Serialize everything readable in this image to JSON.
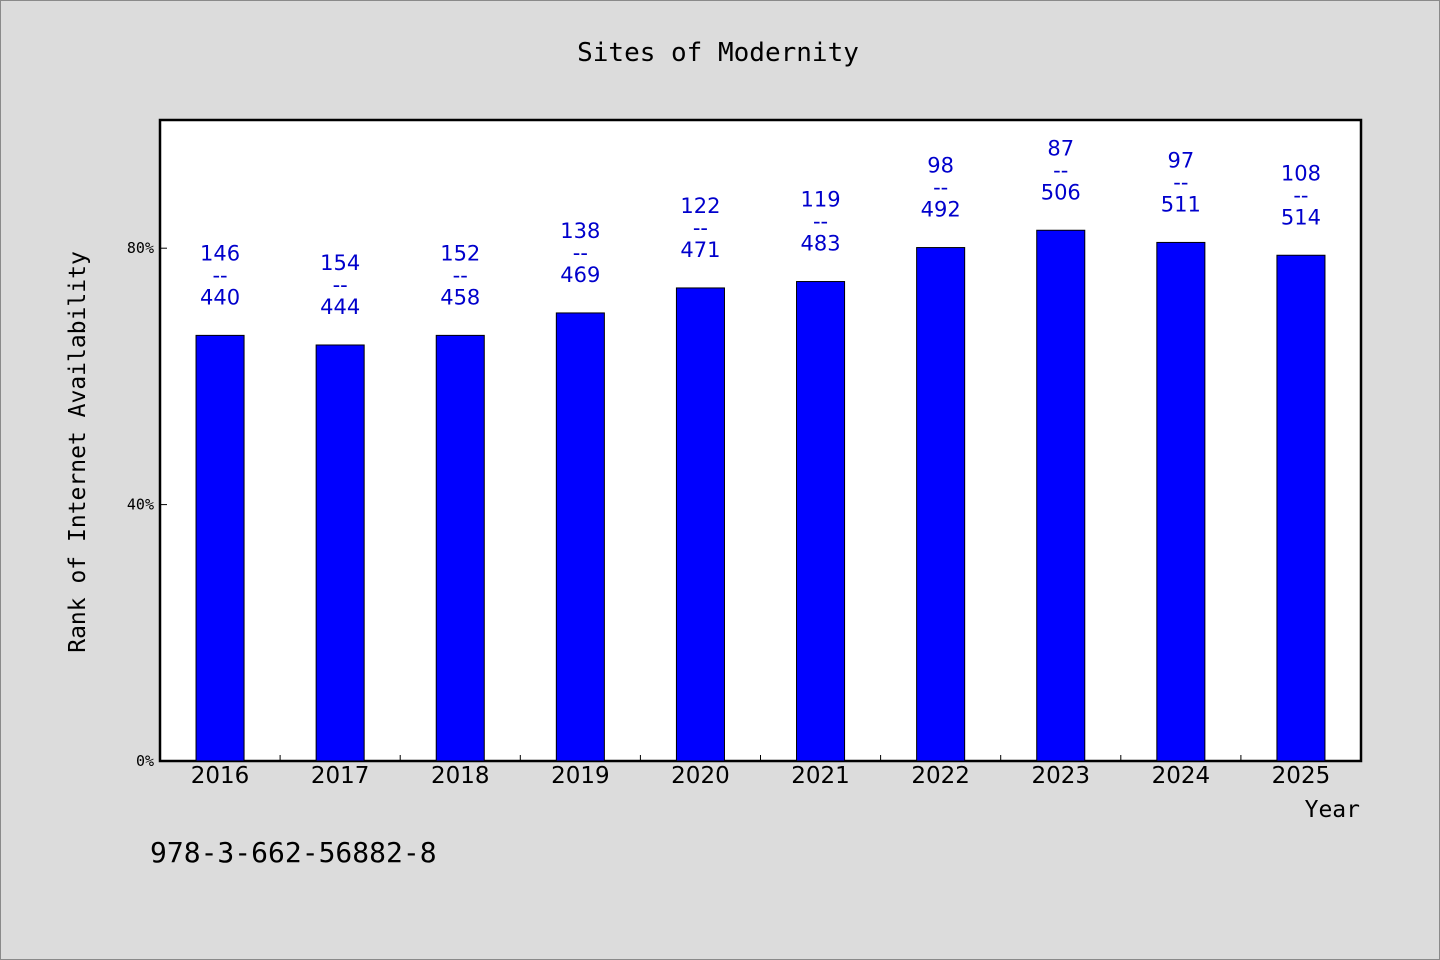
{
  "chart_data": {
    "type": "bar",
    "title": "Sites of Modernity",
    "xlabel": "Year",
    "ylabel": "Rank of Internet Availability",
    "categories": [
      "2016",
      "2017",
      "2018",
      "2019",
      "2020",
      "2021",
      "2022",
      "2023",
      "2024",
      "2025"
    ],
    "series": [
      {
        "values": [
          66.4,
          64.9,
          66.4,
          69.9,
          73.8,
          74.8,
          80.1,
          82.8,
          80.9,
          78.9
        ]
      }
    ],
    "data_labels": [
      {
        "top": "146",
        "sep": "--",
        "bottom": "440"
      },
      {
        "top": "154",
        "sep": "--",
        "bottom": "444"
      },
      {
        "top": "152",
        "sep": "--",
        "bottom": "458"
      },
      {
        "top": "138",
        "sep": "--",
        "bottom": "469"
      },
      {
        "top": "122",
        "sep": "--",
        "bottom": "471"
      },
      {
        "top": "119",
        "sep": "--",
        "bottom": "483"
      },
      {
        "top": "98",
        "sep": "--",
        "bottom": "492"
      },
      {
        "top": "87",
        "sep": "--",
        "bottom": "506"
      },
      {
        "top": "97",
        "sep": "--",
        "bottom": "511"
      },
      {
        "top": "108",
        "sep": "--",
        "bottom": "514"
      }
    ],
    "y_ticks": [
      {
        "value": 0,
        "label": "0%"
      },
      {
        "value": 40,
        "label": "40%"
      },
      {
        "value": 80,
        "label": "80%"
      }
    ],
    "ylim": [
      0,
      100
    ],
    "grid": false,
    "legend": "none",
    "colors": {
      "bar": "#0000ff",
      "bar_label": "#0000cc",
      "background": "#dcdcdc",
      "plot_background": "#ffffff"
    }
  },
  "footnote": "978-3-662-56882-8"
}
